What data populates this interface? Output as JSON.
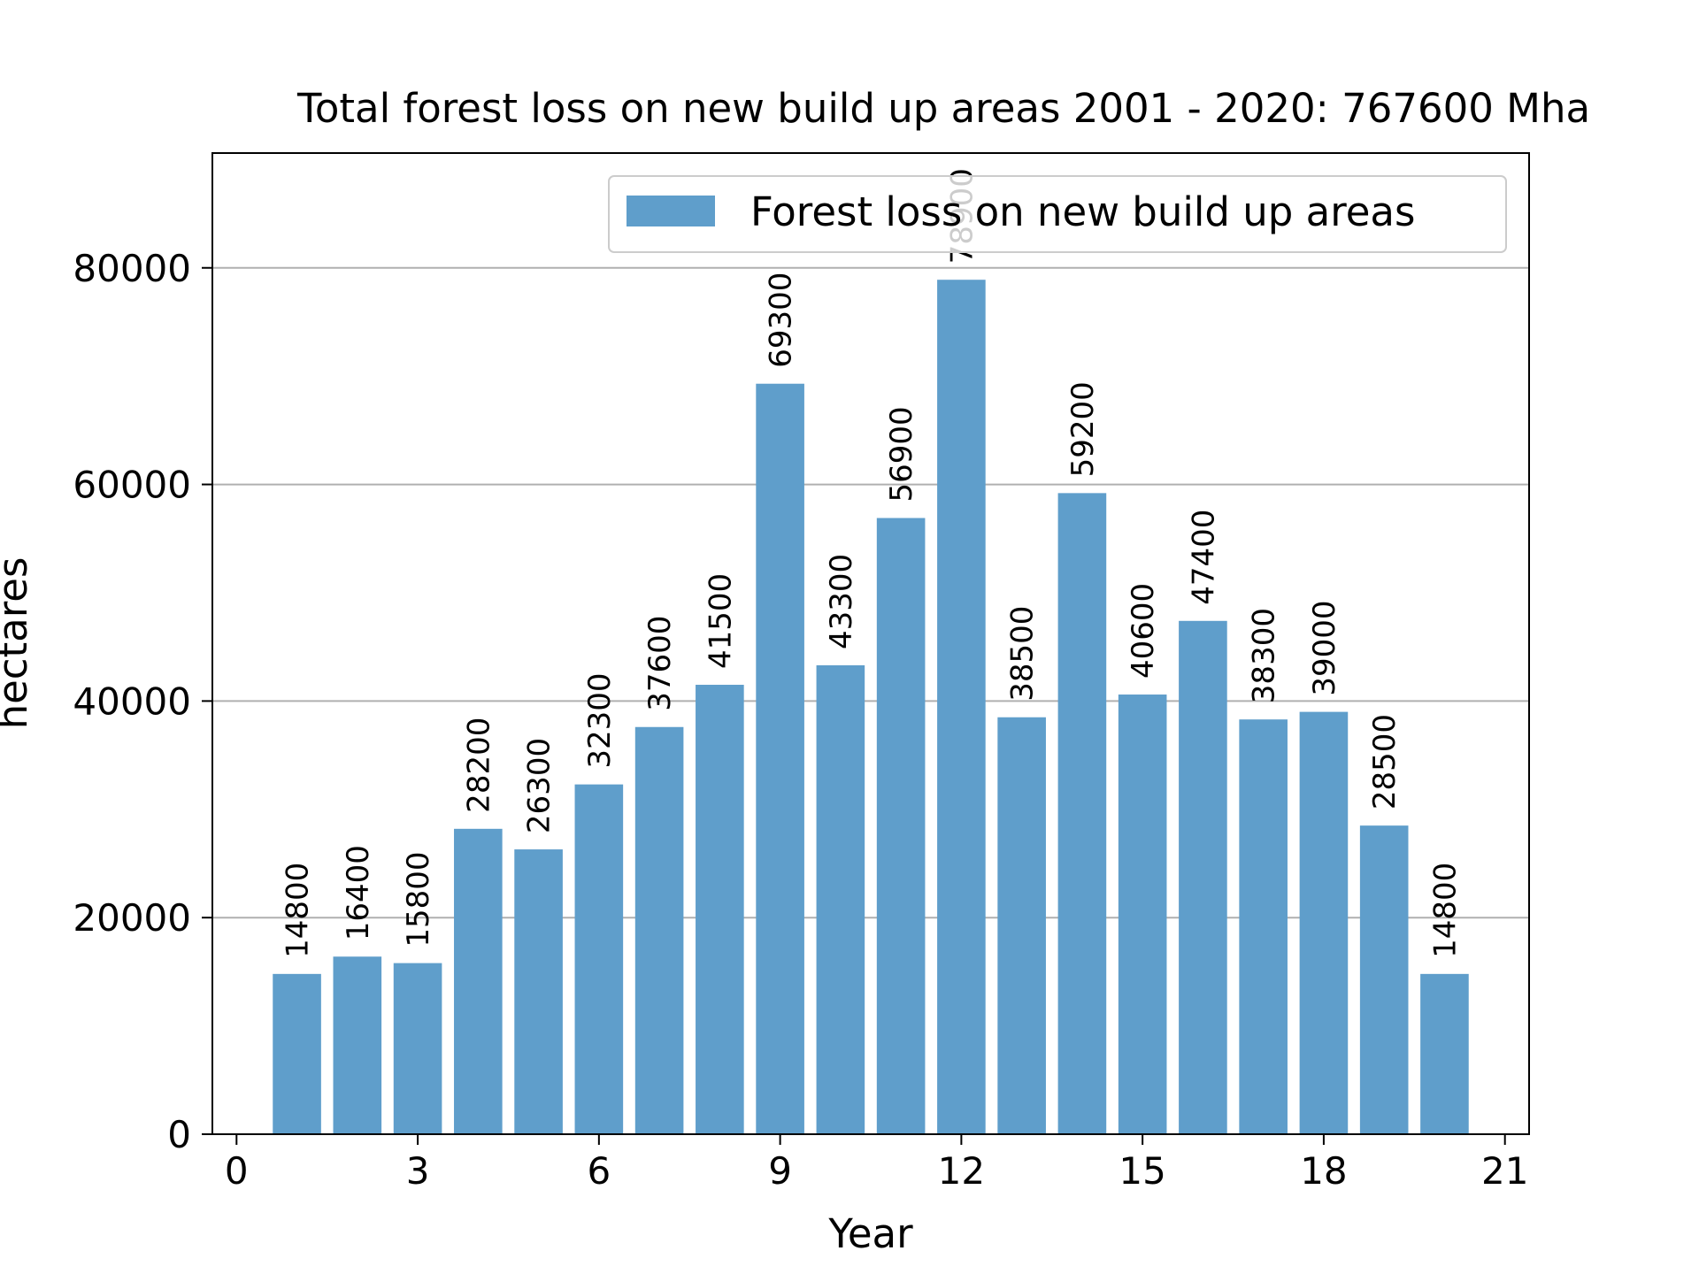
{
  "chart_data": {
    "type": "bar",
    "title": "Total forest loss on new build up areas 2001 - 2020: 767600 Mha",
    "xlabel": "Year",
    "ylabel": "hectares",
    "x": [
      1,
      2,
      3,
      4,
      5,
      6,
      7,
      8,
      9,
      10,
      11,
      12,
      13,
      14,
      15,
      16,
      17,
      18,
      19,
      20
    ],
    "series": [
      {
        "name": "Forest loss on new build up areas",
        "color": "#5f9ecb",
        "values": [
          14800,
          16400,
          15800,
          28200,
          26300,
          32300,
          37600,
          41500,
          69300,
          43300,
          56900,
          78900,
          38500,
          59200,
          40600,
          47400,
          38300,
          39000,
          28500,
          14800
        ]
      }
    ],
    "data_labels": [
      "14800",
      "16400",
      "15800",
      "28200",
      "26300",
      "32300",
      "37600",
      "41500",
      "69300",
      "43300",
      "56900",
      "78900",
      "38500",
      "59200",
      "40600",
      "47400",
      "38300",
      "39000",
      "28500",
      "14800"
    ],
    "xlim": [
      -0.4,
      21.4
    ],
    "ylim": [
      0,
      90600
    ],
    "xticks": [
      0,
      3,
      6,
      9,
      12,
      15,
      18,
      21
    ],
    "xtick_labels": [
      "0",
      "3",
      "6",
      "9",
      "12",
      "15",
      "18",
      "21"
    ],
    "yticks": [
      0,
      20000,
      40000,
      60000,
      80000
    ],
    "ytick_labels": [
      "0",
      "20000",
      "40000",
      "60000",
      "80000"
    ],
    "grid": "horizontal",
    "legend": "upper-right"
  }
}
